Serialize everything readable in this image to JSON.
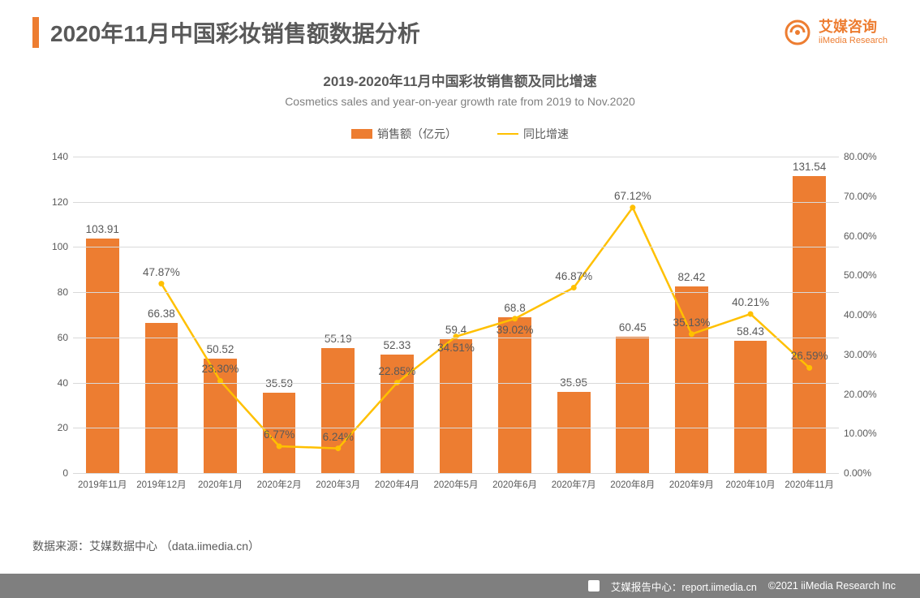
{
  "header": {
    "title": "2020年11月中国彩妆销售额数据分析",
    "logo_cn": "艾媒咨询",
    "logo_en": "iiMedia Research"
  },
  "subtitle": {
    "cn": "2019-2020年11月中国彩妆销售额及同比增速",
    "en": "Cosmetics sales and year-on-year growth rate from 2019 to Nov.2020"
  },
  "legend": {
    "bar": "销售额（亿元）",
    "line": "同比增速"
  },
  "chart": {
    "type": "bar+line",
    "categories": [
      "2019年11月",
      "2019年12月",
      "2020年1月",
      "2020年2月",
      "2020年3月",
      "2020年4月",
      "2020年5月",
      "2020年6月",
      "2020年7月",
      "2020年8月",
      "2020年9月",
      "2020年10月",
      "2020年11月"
    ],
    "bar_values": [
      103.91,
      66.38,
      50.52,
      35.59,
      55.19,
      52.33,
      59.4,
      68.8,
      35.95,
      60.45,
      82.42,
      58.43,
      131.54
    ],
    "bar_color": "#ed7d31",
    "line_values": [
      null,
      47.87,
      23.3,
      6.77,
      6.24,
      22.85,
      34.51,
      39.02,
      46.87,
      67.12,
      35.13,
      40.21,
      26.59
    ],
    "line_color": "#ffc000",
    "y_left": {
      "min": 0,
      "max": 140,
      "step": 20
    },
    "y_right": {
      "min": 0,
      "max": 80,
      "step": 10,
      "suffix": "%"
    },
    "grid_color": "#d9d9d9",
    "background_color": "#ffffff",
    "bar_label_fontsize": 13.5,
    "axis_label_fontsize": 12,
    "x_label_fontsize": 11.5,
    "pct_labels": [
      "",
      "47.87%",
      "23.30%",
      "6.77%",
      "6.24%",
      "22.85%",
      "34.51%",
      "39.02%",
      "46.87%",
      "67.12%",
      "35.13%",
      "40.21%",
      "26.59%"
    ]
  },
  "source": "数据来源：艾媒数据中心 （data.iimedia.cn）",
  "footer": {
    "report": "艾媒报告中心：report.iimedia.cn",
    "copyright": "©2021  iiMedia Research Inc"
  }
}
